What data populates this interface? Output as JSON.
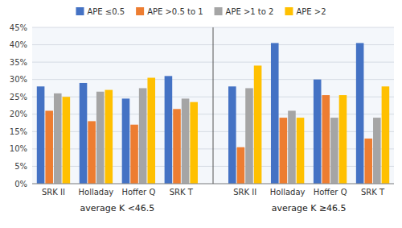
{
  "chart_data": {
    "type": "bar",
    "categories": [
      "SRK II",
      "Holladay",
      "Hoffer Q",
      "SRK T",
      "SRK II",
      "Holladay",
      "Hoffer Q",
      "SRK T"
    ],
    "annotations": [
      "average K <46.5",
      "average K ≥46.5"
    ],
    "series": [
      {
        "name": "APE ≤0.5",
        "color": "#4472C4",
        "values": [
          28,
          29,
          24.5,
          31,
          28,
          40.5,
          30,
          40.5
        ]
      },
      {
        "name": "APE >0.5 to 1",
        "color": "#ED7D31",
        "values": [
          21,
          18,
          17,
          21.5,
          10.5,
          19,
          25.5,
          13
        ]
      },
      {
        "name": "APE >1 to 2",
        "color": "#A5A5A5",
        "values": [
          26,
          26.5,
          27.5,
          24.5,
          27.5,
          21,
          19,
          19
        ]
      },
      {
        "name": "APE >2",
        "color": "#FFC000",
        "values": [
          25,
          27,
          30.5,
          23.5,
          34,
          19,
          25.5,
          28
        ]
      }
    ],
    "ylim": [
      0,
      45
    ],
    "yticks": [
      {
        "value": 0,
        "label": "0%"
      },
      {
        "value": 5,
        "label": "5%"
      },
      {
        "value": 10,
        "label": "10%"
      },
      {
        "value": 15,
        "label": "15%"
      },
      {
        "value": 20,
        "label": "20%"
      },
      {
        "value": 25,
        "label": "25%"
      },
      {
        "value": 30,
        "label": "30%"
      },
      {
        "value": 35,
        "label": "35%"
      },
      {
        "value": 40,
        "label": "40%"
      },
      {
        "value": 45,
        "label": "45%"
      }
    ],
    "grid": true,
    "legend": "top"
  }
}
